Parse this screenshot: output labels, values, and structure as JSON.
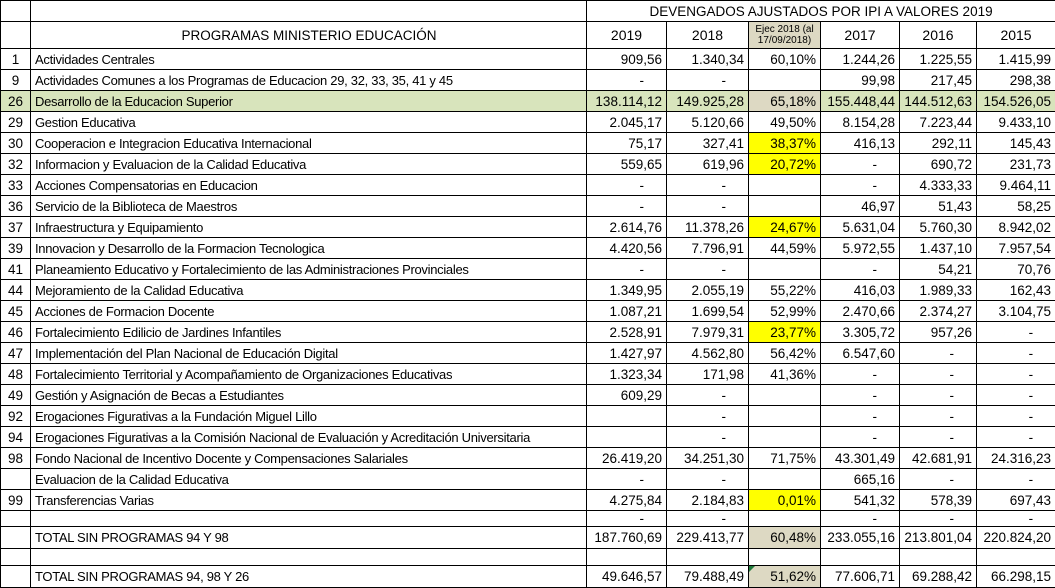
{
  "header": {
    "group_title": "DEVENGADOS AJUSTADOS POR IPI A VALORES 2019",
    "program_col_title": "PROGRAMAS MINISTERIO EDUCACIÓN",
    "year_cols": [
      "2019",
      "2018",
      "Ejec 2018 (al 17/09/2018)",
      "2017",
      "2016",
      "2015"
    ]
  },
  "colors": {
    "row_highlight_green": "#d8e4bc",
    "cell_highlight_tan": "#ddd9c3",
    "cell_highlight_yellow": "#ffff00",
    "grid_border": "#000000",
    "error_triangle_green": "#1f7a3c"
  },
  "rows": [
    {
      "num": "1",
      "name": "Actividades Centrales",
      "cells": [
        "909,56",
        "1.340,34",
        "60,10%",
        "1.244,26",
        "1.225,55",
        "1.415,99"
      ]
    },
    {
      "num": "9",
      "name": "Actividades Comunes a los Programas de Educacion 29, 32, 33, 35, 41 y 45",
      "cells": [
        "-",
        "-",
        "",
        "99,98",
        "217,45",
        "298,38"
      ]
    },
    {
      "num": "26",
      "name": "Desarrollo de la Educacion Superior",
      "cells": [
        "138.114,12",
        "149.925,28",
        "65,18%",
        "155.448,44",
        "144.512,63",
        "154.526,05"
      ],
      "row_bg": "green",
      "ejec_bg": "tan"
    },
    {
      "num": "29",
      "name": "Gestion Educativa",
      "cells": [
        "2.045,17",
        "5.120,66",
        "49,50%",
        "8.154,28",
        "7.223,44",
        "9.433,10"
      ]
    },
    {
      "num": "30",
      "name": "Cooperacion e Integracion Educativa Internacional",
      "cells": [
        "75,17",
        "327,41",
        "38,37%",
        "416,13",
        "292,11",
        "145,43"
      ],
      "ejec_bg": "yellow"
    },
    {
      "num": "32",
      "name": "Informacion y Evaluacion de la Calidad Educativa",
      "cells": [
        "559,65",
        "619,96",
        "20,72%",
        "-",
        "690,72",
        "231,73"
      ],
      "ejec_bg": "yellow"
    },
    {
      "num": "33",
      "name": "Acciones Compensatorias en Educacion",
      "cells": [
        "-",
        "-",
        "",
        "-",
        "4.333,33",
        "9.464,11"
      ]
    },
    {
      "num": "36",
      "name": "Servicio de la Biblioteca de Maestros",
      "cells": [
        "-",
        "-",
        "",
        "46,97",
        "51,43",
        "58,25"
      ]
    },
    {
      "num": "37",
      "name": "Infraestructura y Equipamiento",
      "cells": [
        "2.614,76",
        "11.378,26",
        "24,67%",
        "5.631,04",
        "5.760,30",
        "8.942,02"
      ],
      "ejec_bg": "yellow"
    },
    {
      "num": "39",
      "name": "Innovacion y Desarrollo de la Formacion Tecnologica",
      "cells": [
        "4.420,56",
        "7.796,91",
        "44,59%",
        "5.972,55",
        "1.437,10",
        "7.957,54"
      ]
    },
    {
      "num": "41",
      "name": "Planeamiento Educativo y Fortalecimiento de las Administraciones Provinciales",
      "cells": [
        "-",
        "-",
        "",
        "-",
        "54,21",
        "70,76"
      ]
    },
    {
      "num": "44",
      "name": "Mejoramiento de la Calidad Educativa",
      "cells": [
        "1.349,95",
        "2.055,19",
        "55,22%",
        "416,03",
        "1.989,33",
        "162,43"
      ]
    },
    {
      "num": "45",
      "name": "Acciones de Formacion Docente",
      "cells": [
        "1.087,21",
        "1.699,54",
        "52,99%",
        "2.470,66",
        "2.374,27",
        "3.104,75"
      ]
    },
    {
      "num": "46",
      "name": "Fortalecimiento Edilicio de Jardines Infantiles",
      "cells": [
        "2.528,91",
        "7.979,31",
        "23,77%",
        "3.305,72",
        "957,26",
        "-"
      ],
      "ejec_bg": "yellow"
    },
    {
      "num": "47",
      "name": "Implementación del Plan Nacional de Educación Digital",
      "cells": [
        "1.427,97",
        "4.562,80",
        "56,42%",
        "6.547,60",
        "-",
        "-"
      ]
    },
    {
      "num": "48",
      "name": "Fortalecimiento Territorial y Acompañamiento de Organizaciones Educativas",
      "cells": [
        "1.323,34",
        "171,98",
        "41,36%",
        "-",
        "-",
        "-"
      ]
    },
    {
      "num": "49",
      "name": "Gestión y Asignación de Becas a Estudiantes",
      "cells": [
        "609,29",
        "-",
        "",
        "-",
        "-",
        "-"
      ]
    },
    {
      "num": "92",
      "name": "Erogaciones Figurativas a la Fundación Miguel Lillo",
      "cells": [
        "",
        "-",
        "",
        "-",
        "-",
        "-"
      ]
    },
    {
      "num": "94",
      "name": "Erogaciones Figurativas a la Comisión Nacional de Evaluación y Acreditación Universitaria",
      "cells": [
        "",
        "-",
        "",
        "-",
        "-",
        "-"
      ]
    },
    {
      "num": "98",
      "name": "Fondo Nacional de Incentivo Docente y Compensaciones Salariales",
      "cells": [
        "26.419,20",
        "34.251,30",
        "71,75%",
        "43.301,49",
        "42.681,91",
        "24.316,23"
      ]
    },
    {
      "num": "",
      "name": "Evaluacion de la Calidad Educativa",
      "cells": [
        "-",
        "-",
        "",
        "665,16",
        "-",
        "-"
      ]
    },
    {
      "num": "99",
      "name": "Transferencias Varias",
      "cells": [
        "4.275,84",
        "2.184,83",
        "0,01%",
        "541,32",
        "578,39",
        "697,43"
      ],
      "ejec_bg": "yellow"
    },
    {
      "num": "",
      "name": "",
      "cells": [
        "-",
        "-",
        "",
        "-",
        "-",
        "-"
      ],
      "h": "short"
    },
    {
      "num": "",
      "name": "TOTAL SIN PROGRAMAS 94 Y 98",
      "cells": [
        "187.760,69",
        "229.413,77",
        "60,48%",
        "233.055,16",
        "213.801,04",
        "220.824,20"
      ],
      "ejec_bg": "tan",
      "h": "total"
    },
    {
      "num": "",
      "name": "",
      "cells": [
        "",
        "",
        "",
        "",
        "",
        ""
      ],
      "h": "blank"
    },
    {
      "num": "",
      "name": "TOTAL SIN PROGRAMAS 94, 98 Y 26",
      "cells": [
        "49.646,57",
        "79.488,49",
        "51,62%",
        "77.606,71",
        "69.288,42",
        "66.298,15"
      ],
      "ejec_bg": "tan",
      "error_marker": true,
      "h": "total"
    }
  ]
}
